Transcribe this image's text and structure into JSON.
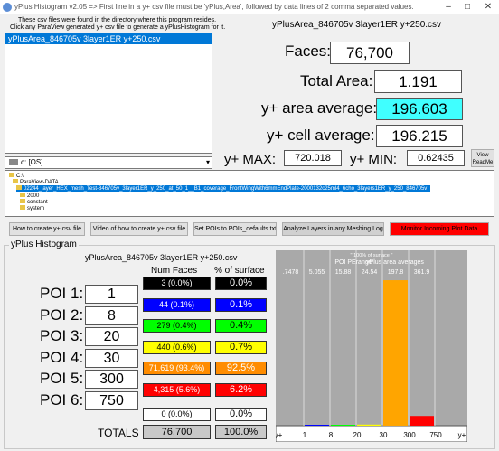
{
  "window": {
    "title": "yPlus Histogram v2.05 => First line in a y+ csv file must be 'yPlus,Area', followed by data lines of 2 comma separated values.",
    "minimize_icon": "minimize-icon",
    "maximize_icon": "maximize-icon",
    "close_icon": "close-icon"
  },
  "file_panel": {
    "instruction_line1": "These csv files were found in the directory where this program resides.",
    "instruction_line2": "Click any ParaView generated y+ csv file to generate a yPlusHistogram for it.",
    "files": [
      "yPlusArea_846705v 3layer1ER y+250.csv"
    ],
    "drive": "c: [OS]"
  },
  "summary": {
    "filename": "yPlusArea_846705v 3layer1ER y+250.csv",
    "faces_label": "Faces:",
    "faces_value": "76,700",
    "total_area_label": "Total Area:",
    "total_area_value": "1.191",
    "area_avg_label": "y+ area average:",
    "area_avg_value": "196.603",
    "cell_avg_label": "y+ cell average:",
    "cell_avg_value": "196.215",
    "ymax_label": "y+ MAX:",
    "ymax_value": "720.018",
    "ymin_label": "y+ MIN:",
    "ymin_value": "0.62435",
    "view_readme_line1": "View",
    "view_readme_line2": "ReadMe"
  },
  "dir_tree": {
    "items": [
      {
        "label": "C:\\"
      },
      {
        "label": "ParaView-DATA"
      },
      {
        "label": "02244_layer_HEX_mesh_Test-846705v_3layer1ER_y_250_at_50_1__B1_coverage_FrontWingWith6mmEndPlate-2000132c25ml4_6cho_3layers1ER_y_250_846705v"
      },
      {
        "label": "2000"
      },
      {
        "label": "constant"
      },
      {
        "label": "system"
      }
    ]
  },
  "buttons": {
    "how_to": "How to create y+ csv file",
    "video": "Video of how to create y+ csv file",
    "set_pois": "Set POIs to POIs_defaults.txt",
    "analyze": "Analyze Layers in any Meshing Log",
    "monitor": "Monitor Incoming Plot Data"
  },
  "histogram": {
    "group_title": "yPlus Histogram",
    "filename": "yPlusArea_846705v 3layer1ER y+250.csv",
    "col_faces": "Num Faces",
    "col_surface": "% of surface",
    "pois": [
      {
        "label": "POI 1:",
        "value": "1",
        "faces": "3 (0.0%)",
        "surface": "0.0%",
        "color": "#000000",
        "text_color": "#ffffff"
      },
      {
        "label": "POI 2:",
        "value": "8",
        "faces": "44 (0.1%)",
        "surface": "0.1%",
        "color": "#0000ff",
        "text_color": "#ffffff"
      },
      {
        "label": "POI 3:",
        "value": "20",
        "faces": "279 (0.4%)",
        "surface": "0.4%",
        "color": "#00ff00",
        "text_color": "#000000"
      },
      {
        "label": "POI 4:",
        "value": "30",
        "faces": "440 (0.6%)",
        "surface": "0.7%",
        "color": "#ffff00",
        "text_color": "#000000"
      },
      {
        "label": "POI 5:",
        "value": "300",
        "faces": "71,619 (93.4%)",
        "surface": "92.5%",
        "color": "#ff8c00",
        "text_color": "#ffffff"
      },
      {
        "label": "POI 6:",
        "value": "750",
        "faces": "4,315 (5.6%)",
        "surface": "6.2%",
        "color": "#ff0000",
        "text_color": "#ffffff"
      }
    ],
    "overflow_faces": "0 (0.0%)",
    "overflow_surface": "0.0%",
    "totals_label": "TOTALS",
    "totals_faces": "76,700",
    "totals_surface": "100.0%"
  },
  "chart_data": {
    "type": "bar",
    "title": "'' 100% of surface ''",
    "subtitle_left": "POI PErange",
    "subtitle_right": "yPlus area averages",
    "categories": [
      "y+-1",
      "1-8",
      "8-20",
      "20-30",
      "30-300",
      "300-750",
      "750-y+"
    ],
    "x_tick_labels": [
      "y+",
      "1",
      "8",
      "20",
      "30",
      "300",
      "750",
      "y+"
    ],
    "averages": [
      ".7478",
      "5.055",
      "15.88",
      "24.54",
      "197.8",
      "361.9",
      ""
    ],
    "values": [
      0.0,
      0.1,
      0.4,
      0.7,
      92.5,
      6.2,
      0.0
    ],
    "colors": [
      "#000000",
      "#0000ff",
      "#00ff00",
      "#ffff00",
      "#ffa500",
      "#ff0000",
      "#888888"
    ],
    "ylim": [
      0,
      100
    ]
  }
}
